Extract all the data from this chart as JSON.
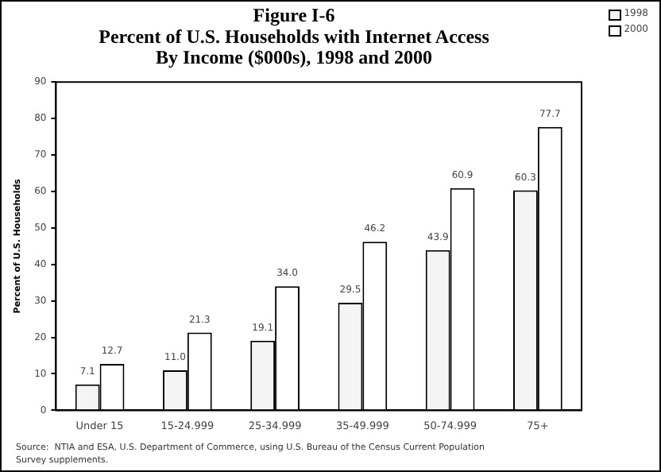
{
  "chart_data": {
    "type": "bar",
    "title": "Figure I-6\nPercent of U.S. Households with Internet Access\nBy Income ($000s), 1998 and 2000",
    "ylabel": "Percent of U.S. Households",
    "categories": [
      "Under 15",
      "15-24.999",
      "25-34.999",
      "35-49.999",
      "50-74.999",
      "75+"
    ],
    "series": [
      {
        "name": "1998",
        "color": "#f4f4f4",
        "values": [
          7.1,
          11.0,
          19.1,
          29.5,
          43.9,
          60.3
        ],
        "value_labels": [
          "7.1",
          "11.0",
          "19.1",
          "29.5",
          "43.9",
          "60.3"
        ]
      },
      {
        "name": "2000",
        "color": "#ffffff",
        "values": [
          12.7,
          21.3,
          34.0,
          46.2,
          60.9,
          77.7
        ],
        "value_labels": [
          "12.7",
          "21.3",
          "34.0",
          "46.2",
          "60.9",
          "77.7"
        ]
      }
    ],
    "ylim": [
      0,
      90
    ],
    "yticks": [
      0,
      10,
      20,
      30,
      40,
      50,
      60,
      70,
      80,
      90
    ],
    "grid": false,
    "legend": "top right",
    "data_labels": true,
    "annotations": [
      "Source:  NTIA and ESA, U.S. Department of Commerce, using U.S. Bureau of the Census Current Population Survey supplements."
    ]
  }
}
